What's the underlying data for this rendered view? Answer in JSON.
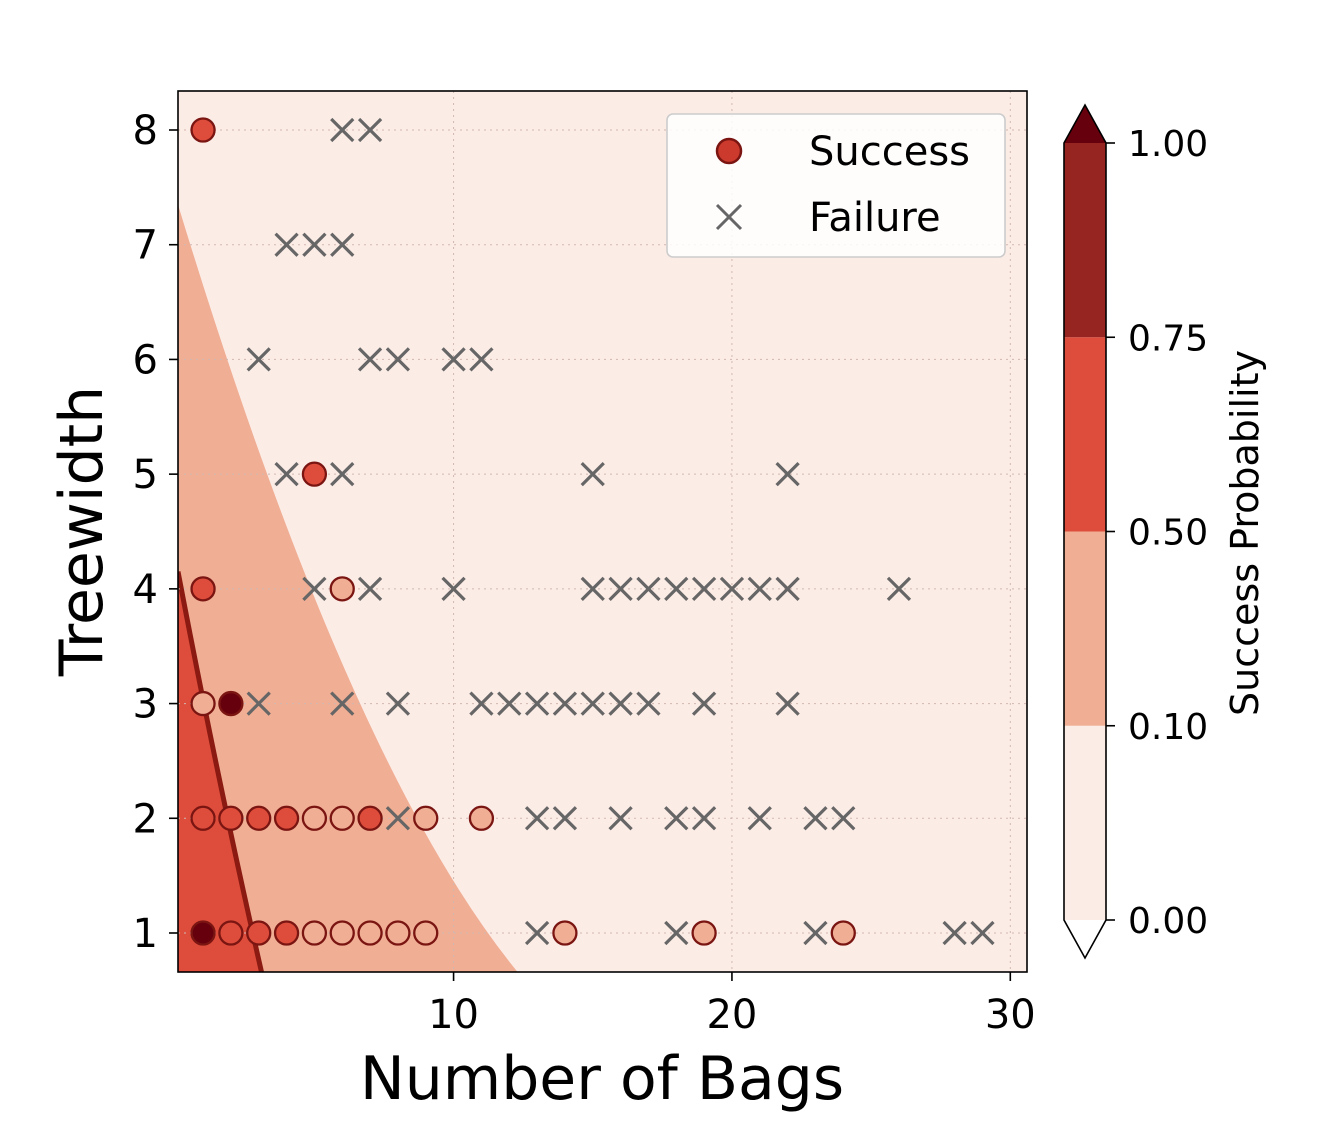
{
  "chart_data": {
    "type": "scatter",
    "xlabel": "Number of Bags",
    "ylabel": "Treewidth",
    "xlim": [
      0.1,
      30.6
    ],
    "ylim": [
      0.66,
      8.34
    ],
    "xticks": [
      10,
      20,
      30
    ],
    "yticks": [
      1,
      2,
      3,
      4,
      5,
      6,
      7,
      8
    ],
    "grid": true,
    "legend": {
      "position": "top-right",
      "entries": [
        {
          "label": "Success",
          "marker": "circle",
          "color": "#cb3a2c"
        },
        {
          "label": "Failure",
          "marker": "x",
          "color": "#666666"
        }
      ]
    },
    "colorbar": {
      "label": "Success Probability",
      "ticks": [
        "0.00",
        "0.10",
        "0.50",
        "0.75",
        "1.00"
      ],
      "levels": [
        0,
        0.1,
        0.5,
        0.75,
        1.0
      ],
      "colors": [
        "#fcece6",
        "#f0ae94",
        "#de4d3b",
        "#962421"
      ],
      "extend_min_color": "#ffffff",
      "extend_max_color": "#67000d"
    },
    "contour": {
      "boundary_0_10": [
        [
          0.1,
          7.35
        ],
        [
          12.3,
          0.66
        ]
      ],
      "boundary_0_50": [
        [
          0.1,
          4.15
        ],
        [
          3.1,
          0.66
        ]
      ],
      "boundary_0_50_color": "#8b1a12"
    },
    "series": [
      {
        "name": "Success",
        "points": [
          {
            "x": 1,
            "y": 8,
            "p": 0.5
          },
          {
            "x": 5,
            "y": 5,
            "p": 0.5
          },
          {
            "x": 1,
            "y": 4,
            "p": 0.6
          },
          {
            "x": 6,
            "y": 4,
            "p": 0.35
          },
          {
            "x": 1,
            "y": 3,
            "p": 0.4
          },
          {
            "x": 2,
            "y": 3,
            "p": 1.0
          },
          {
            "x": 1,
            "y": 2,
            "p": 0.6
          },
          {
            "x": 2,
            "y": 2,
            "p": 0.6
          },
          {
            "x": 3,
            "y": 2,
            "p": 0.6
          },
          {
            "x": 4,
            "y": 2,
            "p": 0.6
          },
          {
            "x": 5,
            "y": 2,
            "p": 0.35
          },
          {
            "x": 6,
            "y": 2,
            "p": 0.1
          },
          {
            "x": 7,
            "y": 2,
            "p": 0.6
          },
          {
            "x": 9,
            "y": 2,
            "p": 0.1
          },
          {
            "x": 11,
            "y": 2,
            "p": 0.1
          },
          {
            "x": 1,
            "y": 1,
            "p": 1.0
          },
          {
            "x": 2,
            "y": 1,
            "p": 0.6
          },
          {
            "x": 3,
            "y": 1,
            "p": 0.6
          },
          {
            "x": 4,
            "y": 1,
            "p": 0.6
          },
          {
            "x": 5,
            "y": 1,
            "p": 0.35
          },
          {
            "x": 6,
            "y": 1,
            "p": 0.35
          },
          {
            "x": 7,
            "y": 1,
            "p": 0.35
          },
          {
            "x": 8,
            "y": 1,
            "p": 0.35
          },
          {
            "x": 9,
            "y": 1,
            "p": 0.35
          },
          {
            "x": 14,
            "y": 1,
            "p": 0.1
          },
          {
            "x": 19,
            "y": 1,
            "p": 0.1
          },
          {
            "x": 24,
            "y": 1,
            "p": 0.1
          }
        ]
      },
      {
        "name": "Failure",
        "points": [
          {
            "x": 6,
            "y": 8
          },
          {
            "x": 7,
            "y": 8
          },
          {
            "x": 4,
            "y": 7
          },
          {
            "x": 5,
            "y": 7
          },
          {
            "x": 6,
            "y": 7
          },
          {
            "x": 3,
            "y": 6
          },
          {
            "x": 7,
            "y": 6
          },
          {
            "x": 8,
            "y": 6
          },
          {
            "x": 10,
            "y": 6
          },
          {
            "x": 11,
            "y": 6
          },
          {
            "x": 4,
            "y": 5
          },
          {
            "x": 6,
            "y": 5
          },
          {
            "x": 15,
            "y": 5
          },
          {
            "x": 22,
            "y": 5
          },
          {
            "x": 5,
            "y": 4
          },
          {
            "x": 7,
            "y": 4
          },
          {
            "x": 10,
            "y": 4
          },
          {
            "x": 15,
            "y": 4
          },
          {
            "x": 16,
            "y": 4
          },
          {
            "x": 17,
            "y": 4
          },
          {
            "x": 18,
            "y": 4
          },
          {
            "x": 19,
            "y": 4
          },
          {
            "x": 20,
            "y": 4
          },
          {
            "x": 21,
            "y": 4
          },
          {
            "x": 22,
            "y": 4
          },
          {
            "x": 26,
            "y": 4
          },
          {
            "x": 3,
            "y": 3
          },
          {
            "x": 6,
            "y": 3
          },
          {
            "x": 8,
            "y": 3
          },
          {
            "x": 11,
            "y": 3
          },
          {
            "x": 12,
            "y": 3
          },
          {
            "x": 13,
            "y": 3
          },
          {
            "x": 14,
            "y": 3
          },
          {
            "x": 15,
            "y": 3
          },
          {
            "x": 16,
            "y": 3
          },
          {
            "x": 17,
            "y": 3
          },
          {
            "x": 19,
            "y": 3
          },
          {
            "x": 22,
            "y": 3
          },
          {
            "x": 8,
            "y": 2
          },
          {
            "x": 13,
            "y": 2
          },
          {
            "x": 14,
            "y": 2
          },
          {
            "x": 16,
            "y": 2
          },
          {
            "x": 18,
            "y": 2
          },
          {
            "x": 19,
            "y": 2
          },
          {
            "x": 21,
            "y": 2
          },
          {
            "x": 23,
            "y": 2
          },
          {
            "x": 24,
            "y": 2
          },
          {
            "x": 13,
            "y": 1
          },
          {
            "x": 18,
            "y": 1
          },
          {
            "x": 23,
            "y": 1
          },
          {
            "x": 28,
            "y": 1
          },
          {
            "x": 29,
            "y": 1
          }
        ]
      }
    ]
  }
}
